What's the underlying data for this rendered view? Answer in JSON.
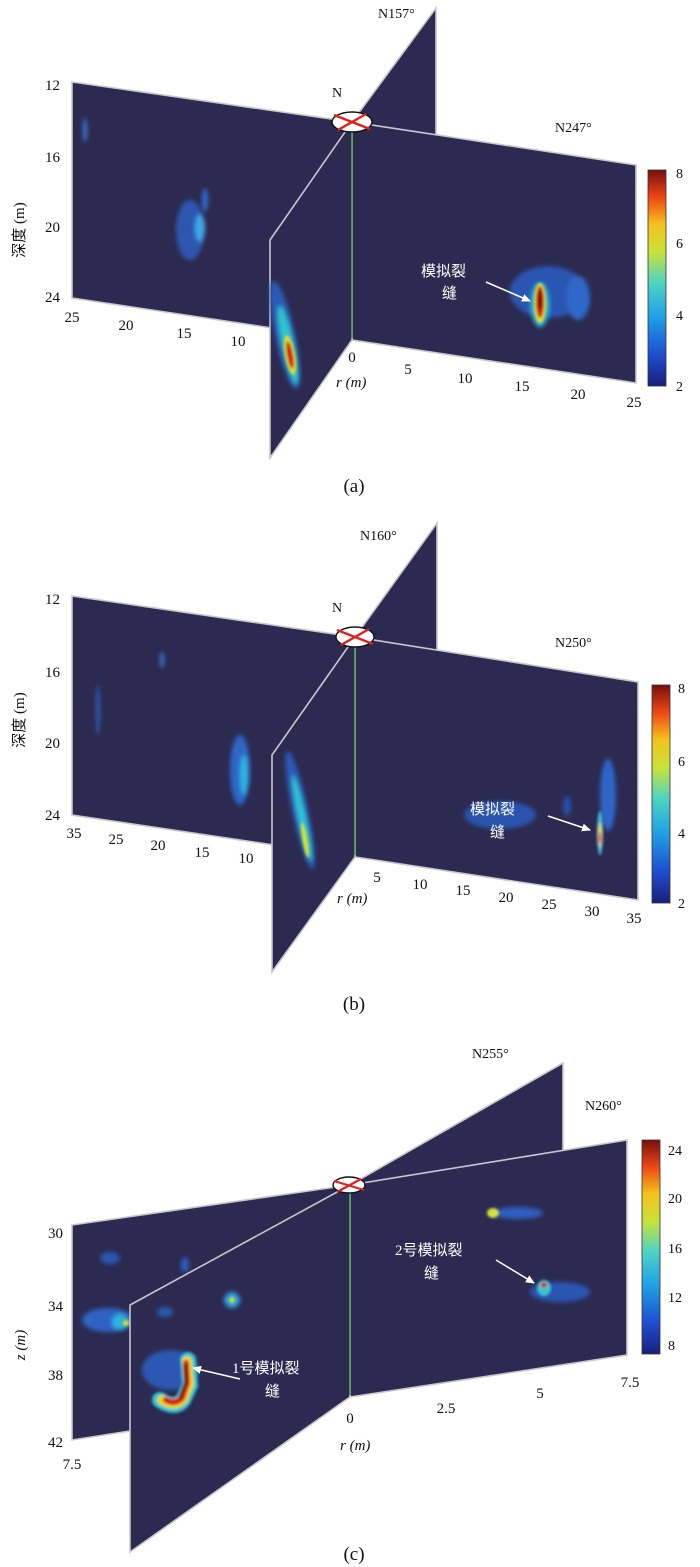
{
  "chart_data": [
    {
      "type": "heatmap",
      "panel_label": "(a)",
      "y_axis_label": "深度 (m)",
      "x_axis_label": "r (m)",
      "north_label": "N",
      "plane_labels": [
        "N157°",
        "N247°"
      ],
      "depth_ticks": [
        "12",
        "16",
        "20",
        "24"
      ],
      "left_r_ticks": [
        "25",
        "20",
        "15",
        "10"
      ],
      "right_r_ticks": [
        "0",
        "5",
        "10",
        "15",
        "20",
        "25"
      ],
      "colorbar": {
        "min": 2,
        "max": 8,
        "ticks": [
          "8",
          "6",
          "4",
          "2"
        ],
        "colormap": "jet"
      },
      "annotation": {
        "line1": "模拟裂",
        "line2": "缝"
      }
    },
    {
      "type": "heatmap",
      "panel_label": "(b)",
      "y_axis_label": "深度 (m)",
      "x_axis_label": "r (m)",
      "north_label": "N",
      "plane_labels": [
        "N160°",
        "N250°"
      ],
      "depth_ticks": [
        "12",
        "16",
        "20",
        "24"
      ],
      "left_r_ticks": [
        "35",
        "25",
        "20",
        "15",
        "10"
      ],
      "right_r_ticks": [
        "5",
        "10",
        "15",
        "20",
        "25",
        "30",
        "35"
      ],
      "colorbar": {
        "min": 2,
        "max": 8,
        "ticks": [
          "8",
          "6",
          "4",
          "2"
        ],
        "colormap": "jet"
      },
      "annotation": {
        "line1": "模拟裂",
        "line2": "缝"
      }
    },
    {
      "type": "heatmap",
      "panel_label": "(c)",
      "y_axis_label": "z (m)",
      "x_axis_label": "r (m)",
      "plane_labels": [
        "N255°",
        "N260°"
      ],
      "depth_ticks": [
        "30",
        "34",
        "38",
        "42"
      ],
      "left_r_ticks": [
        "7.5"
      ],
      "right_r_ticks": [
        "0",
        "2.5",
        "5",
        "7.5"
      ],
      "colorbar": {
        "min": 8,
        "max": 24,
        "ticks": [
          "24",
          "20",
          "16",
          "12",
          "8"
        ],
        "colormap": "jet"
      },
      "annotations": [
        {
          "line1": "2号模拟裂",
          "line2": "缝"
        },
        {
          "line1": "1号模拟裂",
          "line2": "缝"
        }
      ]
    }
  ]
}
